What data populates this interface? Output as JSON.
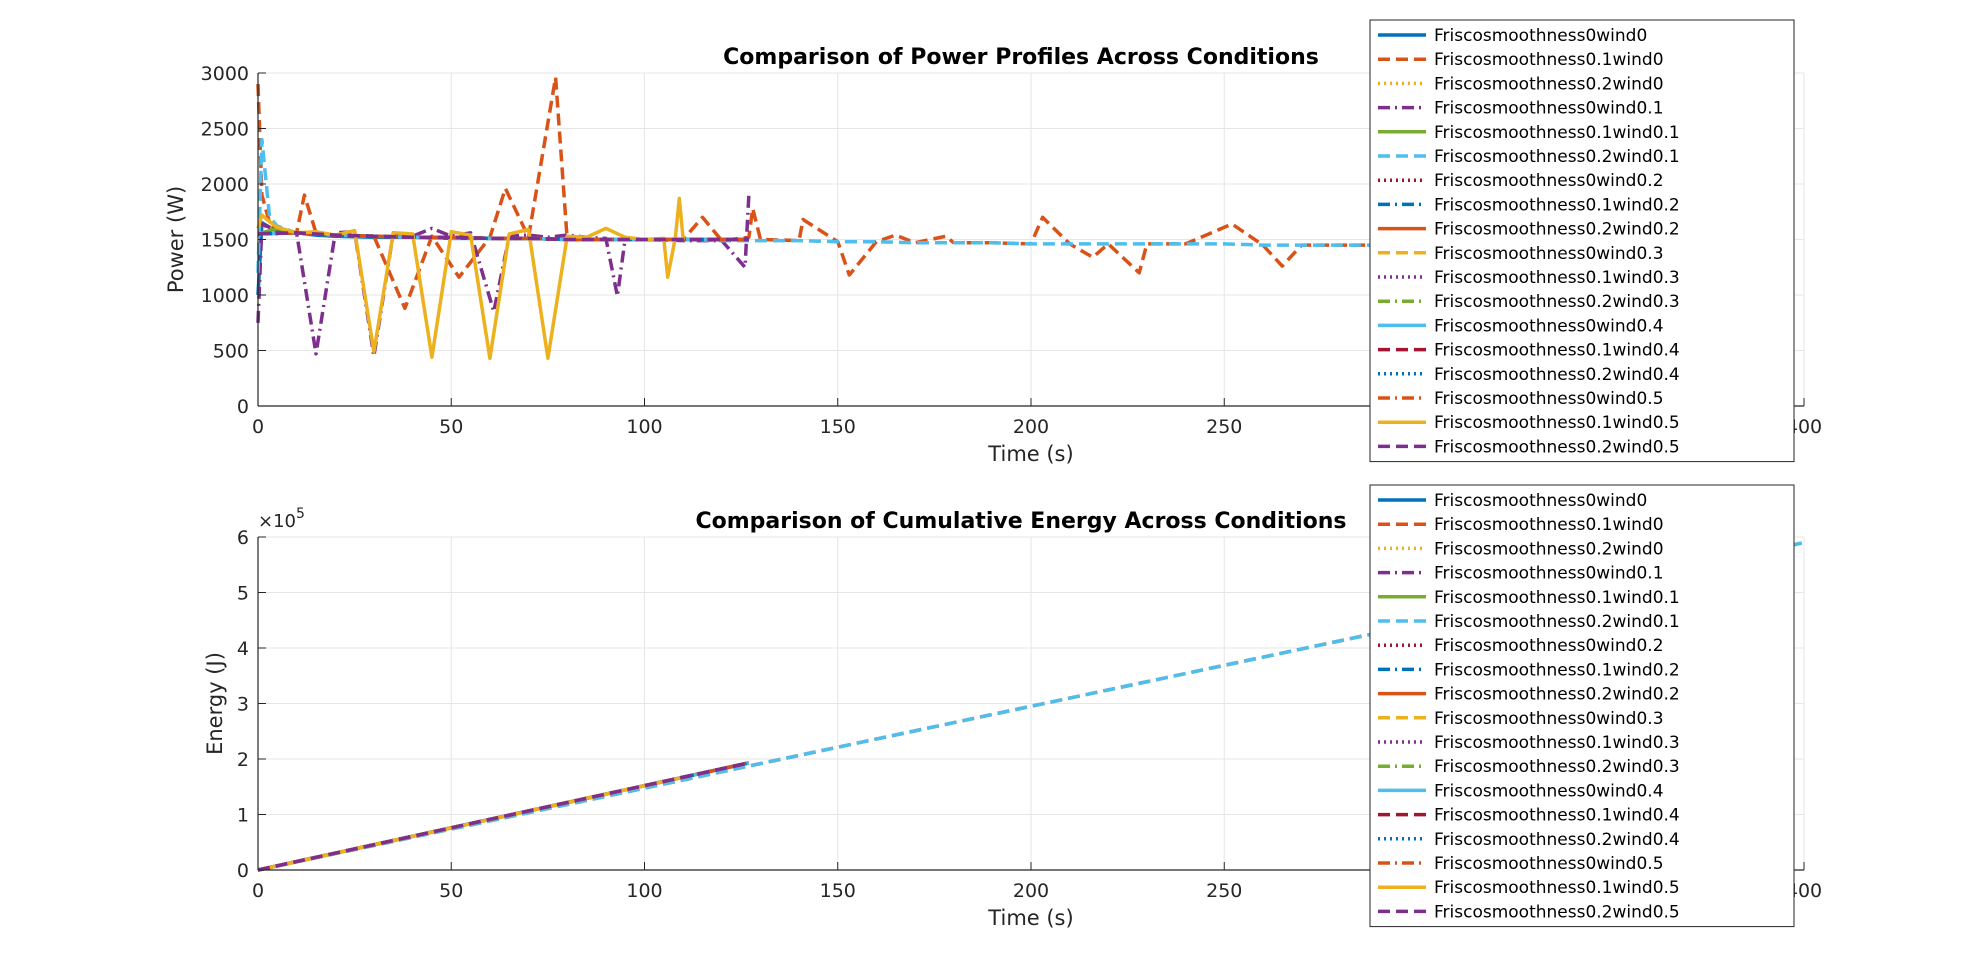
{
  "chart_data": [
    {
      "type": "line",
      "title": "Comparison of Power Profiles Across Conditions",
      "xlabel": "Time (s)",
      "ylabel": "Power (W)",
      "xlim": [
        0,
        400
      ],
      "ylim": [
        0,
        3000
      ],
      "xticks": [
        "0",
        "50",
        "100",
        "150",
        "200",
        "250",
        "300",
        "350",
        "400"
      ],
      "yticks": [
        "0",
        "500",
        "1000",
        "1500",
        "2000",
        "2500",
        "3000"
      ],
      "grid": true,
      "legend_position": "top-right",
      "series": [
        {
          "name": "Friscosmoothness0wind0",
          "color": "#0072BD",
          "dash": "solid",
          "length": 127,
          "x": [
            0,
            1,
            3,
            5,
            10,
            15,
            20,
            30,
            40,
            50,
            60,
            70,
            80,
            90,
            100,
            110,
            120,
            125,
            127
          ],
          "y": [
            1000,
            1650,
            1610,
            1580,
            1560,
            1540,
            1530,
            1520,
            1520,
            1510,
            1510,
            1510,
            1500,
            1500,
            1500,
            1500,
            1500,
            1500,
            1510
          ]
        },
        {
          "name": "Friscosmoothness0.1wind0",
          "color": "#D95319",
          "dash": "dash",
          "length": 400,
          "x": [
            0,
            1,
            3,
            5,
            10,
            12,
            15,
            20,
            30,
            38,
            45,
            52,
            60,
            64,
            70,
            77,
            80,
            90,
            100,
            110,
            115,
            120,
            127,
            128,
            130,
            140,
            141,
            150,
            153,
            160,
            165,
            170,
            178,
            180,
            190,
            200,
            203,
            210,
            216,
            220,
            228,
            230,
            240,
            252,
            260,
            265,
            270,
            280,
            290,
            300,
            310,
            320,
            330,
            340,
            350,
            360,
            370,
            380,
            390
          ],
          "y": [
            2900,
            1900,
            1650,
            1600,
            1560,
            1900,
            1560,
            1540,
            1530,
            880,
            1530,
            1160,
            1520,
            1960,
            1520,
            2960,
            1500,
            1500,
            1500,
            1500,
            1700,
            1490,
            1520,
            1780,
            1500,
            1490,
            1680,
            1480,
            1180,
            1480,
            1540,
            1470,
            1530,
            1470,
            1470,
            1460,
            1700,
            1460,
            1340,
            1460,
            1200,
            1460,
            1460,
            1640,
            1450,
            1260,
            1450,
            1450,
            1450,
            1130,
            1450,
            1450,
            1450,
            1450,
            1450,
            1450,
            1450,
            1450,
            1450
          ]
        },
        {
          "name": "Friscosmoothness0.2wind0",
          "color": "#EDB120",
          "dash": "dot",
          "length": 127,
          "x": [
            0,
            2,
            5,
            10,
            20,
            30,
            40,
            50,
            60,
            70,
            80,
            90,
            100,
            110,
            120,
            127
          ],
          "y": [
            1600,
            1620,
            1590,
            1560,
            1540,
            1530,
            1520,
            1520,
            1510,
            1510,
            1500,
            1500,
            1500,
            1500,
            1500,
            1500
          ]
        },
        {
          "name": "Friscosmoothness0wind0.1",
          "color": "#7E2F8E",
          "dash": "dashdot",
          "length": 127,
          "x": [
            0,
            1,
            5,
            10,
            15,
            20,
            25,
            30,
            35,
            40,
            45,
            50,
            55,
            61,
            65,
            70,
            75,
            80,
            85,
            90,
            93,
            95,
            100,
            110,
            120,
            126,
            127
          ],
          "y": [
            750,
            1640,
            1580,
            1560,
            470,
            1560,
            1570,
            450,
            1560,
            1530,
            1600,
            1530,
            1560,
            850,
            1530,
            1540,
            1520,
            1540,
            1520,
            1510,
            990,
            1510,
            1500,
            1490,
            1490,
            1250,
            1910
          ]
        },
        {
          "name": "Friscosmoothness0.1wind0.1",
          "color": "#77AC30",
          "dash": "solid",
          "length": 127,
          "x": [
            0,
            5,
            10,
            20,
            30,
            40,
            50,
            60,
            70,
            80,
            90,
            100,
            110,
            120,
            127
          ],
          "y": [
            1550,
            1600,
            1560,
            1540,
            1530,
            1520,
            1520,
            1510,
            1510,
            1500,
            1500,
            1500,
            1500,
            1500,
            1500
          ]
        },
        {
          "name": "Friscosmoothness0.2wind0.1",
          "color": "#4DBEEE",
          "dash": "dash",
          "length": 400,
          "x": [
            0,
            1,
            3,
            5,
            10,
            20,
            30,
            40,
            50,
            60,
            70,
            80,
            90,
            100,
            110,
            120,
            130,
            140,
            150,
            160,
            170,
            180,
            190,
            200,
            210,
            220,
            230,
            240,
            250,
            260,
            270,
            280,
            290,
            300,
            310,
            320,
            330,
            340,
            350,
            360,
            370,
            380,
            390
          ],
          "y": [
            1200,
            2400,
            1700,
            1620,
            1560,
            1540,
            1530,
            1520,
            1510,
            1510,
            1510,
            1500,
            1500,
            1500,
            1500,
            1490,
            1490,
            1490,
            1480,
            1480,
            1470,
            1470,
            1470,
            1460,
            1460,
            1460,
            1460,
            1460,
            1460,
            1450,
            1450,
            1450,
            1450,
            1450,
            1450,
            1450,
            1450,
            1450,
            1450,
            1450,
            1450,
            1450,
            1450
          ]
        },
        {
          "name": "Friscosmoothness0wind0.2",
          "color": "#A2142F",
          "dash": "dot",
          "length": 127,
          "x": [
            0,
            10,
            20,
            30,
            40,
            50,
            60,
            70,
            80,
            90,
            100,
            110,
            120,
            127
          ],
          "y": [
            1550,
            1560,
            1540,
            1530,
            1520,
            1520,
            1510,
            1510,
            1500,
            1500,
            1500,
            1500,
            1500,
            1500
          ]
        },
        {
          "name": "Friscosmoothness0.1wind0.2",
          "color": "#0072BD",
          "dash": "dashdot",
          "length": 127,
          "x": [
            0,
            10,
            20,
            30,
            40,
            50,
            60,
            70,
            80,
            90,
            100,
            110,
            120,
            127
          ],
          "y": [
            1550,
            1560,
            1540,
            1530,
            1520,
            1520,
            1510,
            1510,
            1500,
            1500,
            1500,
            1500,
            1500,
            1500
          ]
        },
        {
          "name": "Friscosmoothness0.2wind0.2",
          "color": "#D95319",
          "dash": "solid",
          "length": 127,
          "x": [
            0,
            10,
            20,
            30,
            40,
            50,
            60,
            70,
            80,
            90,
            100,
            110,
            120,
            127
          ],
          "y": [
            1550,
            1560,
            1540,
            1530,
            1520,
            1520,
            1510,
            1510,
            1500,
            1500,
            1500,
            1500,
            1500,
            1500
          ]
        },
        {
          "name": "Friscosmoothness0wind0.3",
          "color": "#EDB120",
          "dash": "dash",
          "length": 127,
          "x": [
            0,
            10,
            20,
            30,
            40,
            50,
            60,
            70,
            80,
            90,
            100,
            110,
            120,
            127
          ],
          "y": [
            1550,
            1560,
            1540,
            1530,
            1520,
            1520,
            1510,
            1510,
            1500,
            1500,
            1500,
            1500,
            1500,
            1500
          ]
        },
        {
          "name": "Friscosmoothness0.1wind0.3",
          "color": "#7E2F8E",
          "dash": "dot",
          "length": 127,
          "x": [
            0,
            10,
            20,
            30,
            40,
            50,
            60,
            70,
            80,
            90,
            100,
            110,
            120,
            127
          ],
          "y": [
            1550,
            1560,
            1540,
            1530,
            1520,
            1520,
            1510,
            1510,
            1500,
            1500,
            1500,
            1500,
            1500,
            1500
          ]
        },
        {
          "name": "Friscosmoothness0.2wind0.3",
          "color": "#77AC30",
          "dash": "dashdot",
          "length": 127,
          "x": [
            0,
            10,
            20,
            30,
            40,
            50,
            60,
            70,
            80,
            90,
            100,
            110,
            120,
            127
          ],
          "y": [
            1550,
            1560,
            1540,
            1530,
            1520,
            1520,
            1510,
            1510,
            1500,
            1500,
            1500,
            1500,
            1500,
            1500
          ]
        },
        {
          "name": "Friscosmoothness0wind0.4",
          "color": "#4DBEEE",
          "dash": "solid",
          "length": 127,
          "x": [
            0,
            10,
            20,
            30,
            40,
            50,
            60,
            70,
            80,
            90,
            100,
            110,
            120,
            127
          ],
          "y": [
            1550,
            1560,
            1540,
            1530,
            1520,
            1520,
            1510,
            1510,
            1500,
            1500,
            1500,
            1500,
            1500,
            1500
          ]
        },
        {
          "name": "Friscosmoothness0.1wind0.4",
          "color": "#A2142F",
          "dash": "dash",
          "length": 127,
          "x": [
            0,
            10,
            20,
            30,
            40,
            50,
            60,
            70,
            80,
            90,
            100,
            110,
            120,
            127
          ],
          "y": [
            1550,
            1560,
            1540,
            1530,
            1520,
            1520,
            1510,
            1510,
            1500,
            1500,
            1500,
            1500,
            1500,
            1500
          ]
        },
        {
          "name": "Friscosmoothness0.2wind0.4",
          "color": "#0072BD",
          "dash": "dot",
          "length": 127,
          "x": [
            0,
            10,
            20,
            30,
            40,
            50,
            60,
            70,
            80,
            90,
            100,
            110,
            120,
            127
          ],
          "y": [
            1550,
            1560,
            1540,
            1530,
            1520,
            1520,
            1510,
            1510,
            1500,
            1500,
            1500,
            1500,
            1500,
            1500
          ]
        },
        {
          "name": "Friscosmoothness0wind0.5",
          "color": "#D95319",
          "dash": "dashdot",
          "length": 127,
          "x": [
            0,
            10,
            20,
            30,
            40,
            50,
            60,
            70,
            80,
            90,
            100,
            110,
            120,
            127
          ],
          "y": [
            1550,
            1560,
            1540,
            1530,
            1520,
            1520,
            1510,
            1510,
            1500,
            1500,
            1500,
            1500,
            1500,
            1500
          ]
        },
        {
          "name": "Friscosmoothness0.1wind0.5",
          "color": "#EDB120",
          "dash": "solid",
          "length": 110,
          "x": [
            0,
            1,
            3,
            5,
            10,
            15,
            20,
            25,
            30,
            35,
            40,
            45,
            50,
            55,
            60,
            65,
            70,
            75,
            80,
            85,
            90,
            95,
            100,
            105,
            106,
            108,
            109,
            110
          ],
          "y": [
            1600,
            1720,
            1660,
            1610,
            1560,
            1570,
            1540,
            1580,
            490,
            1560,
            1550,
            440,
            1570,
            1540,
            430,
            1550,
            1590,
            430,
            1530,
            1520,
            1600,
            1520,
            1500,
            1510,
            1160,
            1520,
            1870,
            1500
          ]
        },
        {
          "name": "Friscosmoothness0.2wind0.5",
          "color": "#7E2F8E",
          "dash": "dash",
          "length": 127,
          "x": [
            0,
            10,
            20,
            30,
            40,
            50,
            60,
            70,
            80,
            90,
            100,
            110,
            120,
            127
          ],
          "y": [
            1550,
            1560,
            1540,
            1530,
            1520,
            1520,
            1510,
            1510,
            1500,
            1500,
            1500,
            1500,
            1500,
            1500
          ]
        }
      ]
    },
    {
      "type": "line",
      "title": "Comparison of Cumulative Energy Across Conditions",
      "xlabel": "Time (s)",
      "ylabel": "Energy (J)",
      "xlim": [
        0,
        400
      ],
      "ylim": [
        0,
        600000
      ],
      "y_exponent_base": "×10",
      "y_exponent_power": "5",
      "xticks": [
        "0",
        "50",
        "100",
        "150",
        "200",
        "250",
        "300",
        "350",
        "400"
      ],
      "yticks": [
        "0",
        "1",
        "2",
        "3",
        "4",
        "5",
        "6"
      ],
      "grid": true,
      "legend_position": "top-right",
      "series_energy_end": [
        {
          "name": "Friscosmoothness0wind0",
          "t_end": 127,
          "e_end": 193000
        },
        {
          "name": "Friscosmoothness0.1wind0",
          "t_end": 400,
          "e_end": 590000
        },
        {
          "name": "Friscosmoothness0.2wind0",
          "t_end": 127,
          "e_end": 193000
        },
        {
          "name": "Friscosmoothness0wind0.1",
          "t_end": 127,
          "e_end": 193000
        },
        {
          "name": "Friscosmoothness0.1wind0.1",
          "t_end": 127,
          "e_end": 193000
        },
        {
          "name": "Friscosmoothness0.2wind0.1",
          "t_end": 400,
          "e_end": 590000
        },
        {
          "name": "Friscosmoothness0wind0.2",
          "t_end": 127,
          "e_end": 193000
        },
        {
          "name": "Friscosmoothness0.1wind0.2",
          "t_end": 127,
          "e_end": 193000
        },
        {
          "name": "Friscosmoothness0.2wind0.2",
          "t_end": 127,
          "e_end": 193000
        },
        {
          "name": "Friscosmoothness0wind0.3",
          "t_end": 127,
          "e_end": 193000
        },
        {
          "name": "Friscosmoothness0.1wind0.3",
          "t_end": 127,
          "e_end": 193000
        },
        {
          "name": "Friscosmoothness0.2wind0.3",
          "t_end": 127,
          "e_end": 193000
        },
        {
          "name": "Friscosmoothness0wind0.4",
          "t_end": 127,
          "e_end": 193000
        },
        {
          "name": "Friscosmoothness0.1wind0.4",
          "t_end": 127,
          "e_end": 193000
        },
        {
          "name": "Friscosmoothness0.2wind0.4",
          "t_end": 127,
          "e_end": 193000
        },
        {
          "name": "Friscosmoothness0wind0.5",
          "t_end": 127,
          "e_end": 193000
        },
        {
          "name": "Friscosmoothness0.1wind0.5",
          "t_end": 110,
          "e_end": 167000
        },
        {
          "name": "Friscosmoothness0.2wind0.5",
          "t_end": 127,
          "e_end": 193000
        }
      ]
    }
  ]
}
